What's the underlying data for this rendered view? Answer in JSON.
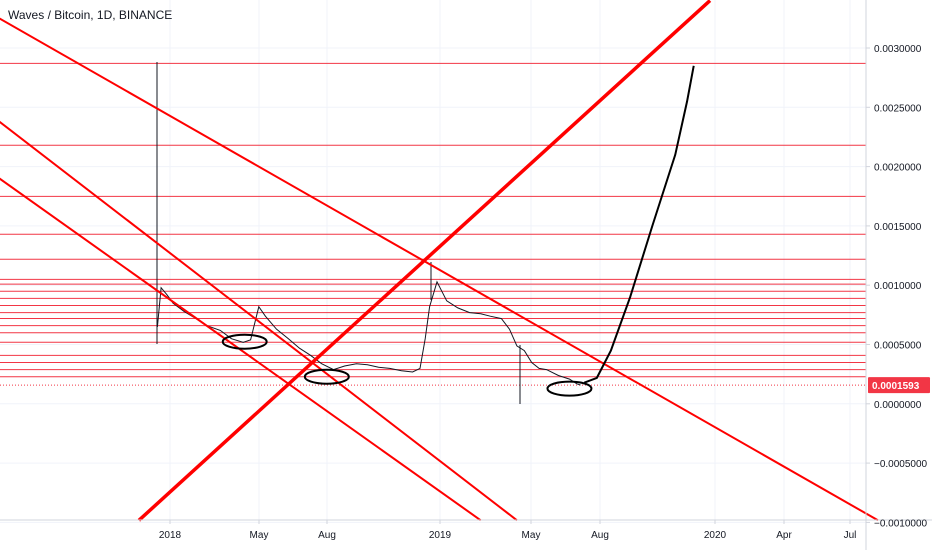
{
  "chart_title": "Waves / Bitcoin, 1D, BINANCE",
  "colors": {
    "trendline": "#ff0000",
    "level_line": "#f23645",
    "price_line": "#131722",
    "drawing": "#000000",
    "current_price_bg": "#f23645",
    "axis_text": "#131722"
  },
  "chart_data": {
    "type": "line",
    "title": "Waves / Bitcoin, 1D, BINANCE",
    "xlabel": "",
    "ylabel": "",
    "x_ticks": [
      "2018",
      "May",
      "Aug",
      "2019",
      "May",
      "Aug",
      "2020",
      "Apr",
      "Jul"
    ],
    "y_ticks": [
      "0.0030000",
      "0.0025000",
      "0.0020000",
      "0.0015000",
      "0.0010000",
      "0.0005000",
      "0.0000000",
      "−0.0005000",
      "−0.0010000"
    ],
    "ylim": [
      -0.001,
      0.0034
    ],
    "current_price": "0.0001593",
    "current_price_value": 0.0001593,
    "price_series": {
      "name": "WAVES/BTC",
      "x": [
        "2017-12-15",
        "2017-12-20",
        "2017-12-28",
        "2018-01-05",
        "2018-01-20",
        "2018-02-05",
        "2018-02-20",
        "2018-03-10",
        "2018-03-25",
        "2018-04-10",
        "2018-04-20",
        "2018-05-01",
        "2018-05-10",
        "2018-05-25",
        "2018-06-10",
        "2018-06-25",
        "2018-07-10",
        "2018-07-25",
        "2018-08-10",
        "2018-08-25",
        "2018-09-10",
        "2018-09-25",
        "2018-10-10",
        "2018-10-25",
        "2018-11-10",
        "2018-11-25",
        "2018-12-05",
        "2018-12-12",
        "2018-12-18",
        "2018-12-28",
        "2019-01-10",
        "2019-01-25",
        "2019-02-10",
        "2019-02-25",
        "2019-03-10",
        "2019-03-25",
        "2019-04-05",
        "2019-04-15",
        "2019-04-25",
        "2019-05-05",
        "2019-05-15",
        "2019-05-25",
        "2019-06-10",
        "2019-06-25",
        "2019-07-05",
        "2019-07-10"
      ],
      "values": [
        0.00065,
        0.00098,
        0.00092,
        0.00085,
        0.00078,
        0.00072,
        0.00066,
        0.00062,
        0.00055,
        0.00052,
        0.00054,
        0.00082,
        0.00074,
        0.00063,
        0.00055,
        0.00047,
        0.00041,
        0.00034,
        0.00029,
        0.00032,
        0.00034,
        0.00033,
        0.00031,
        0.0003,
        0.00028,
        0.00027,
        0.0003,
        0.00055,
        0.00082,
        0.00103,
        0.00087,
        0.00081,
        0.00077,
        0.00076,
        0.00074,
        0.00072,
        0.00063,
        0.00049,
        0.00045,
        0.00035,
        0.0003,
        0.00029,
        0.00024,
        0.00021,
        0.00017,
        0.00016
      ]
    },
    "horizontal_levels": [
      0.00287,
      0.00218,
      0.00175,
      0.00143,
      0.00122,
      0.00105,
      0.00101,
      0.00095,
      0.00089,
      0.00083,
      0.00077,
      0.00072,
      0.00066,
      0.0006,
      0.00052,
      0.00041,
      0.00035,
      0.00029,
      0.00023
    ],
    "trendlines": [
      {
        "x1": "2017-03-20",
        "y1": 0.00345,
        "x2": "2020-08-15",
        "y2": -0.00098
      },
      {
        "x1": "2017-03-20",
        "y1": 0.00265,
        "x2": "2019-04-15",
        "y2": -0.00098
      },
      {
        "x1": "2017-03-20",
        "y1": 0.00215,
        "x2": "2019-02-25",
        "y2": -0.00098
      },
      {
        "x1": "2017-11-20",
        "y1": -0.00098,
        "x2": "2020-01-01",
        "y2": 0.0034
      }
    ],
    "projection": {
      "x": [
        "2019-07-15",
        "2019-08-01",
        "2019-08-20",
        "2019-09-15",
        "2019-10-15",
        "2019-11-15",
        "2019-12-01",
        "2019-12-10"
      ],
      "values": [
        0.00018,
        0.00022,
        0.00045,
        0.0009,
        0.0015,
        0.0021,
        0.00255,
        0.00285
      ]
    },
    "ellipses": [
      {
        "x": "2018-04-12",
        "y": 0.000525
      },
      {
        "x": "2018-08-01",
        "y": 0.00023
      },
      {
        "x": "2019-06-25",
        "y": 0.00013
      }
    ]
  }
}
